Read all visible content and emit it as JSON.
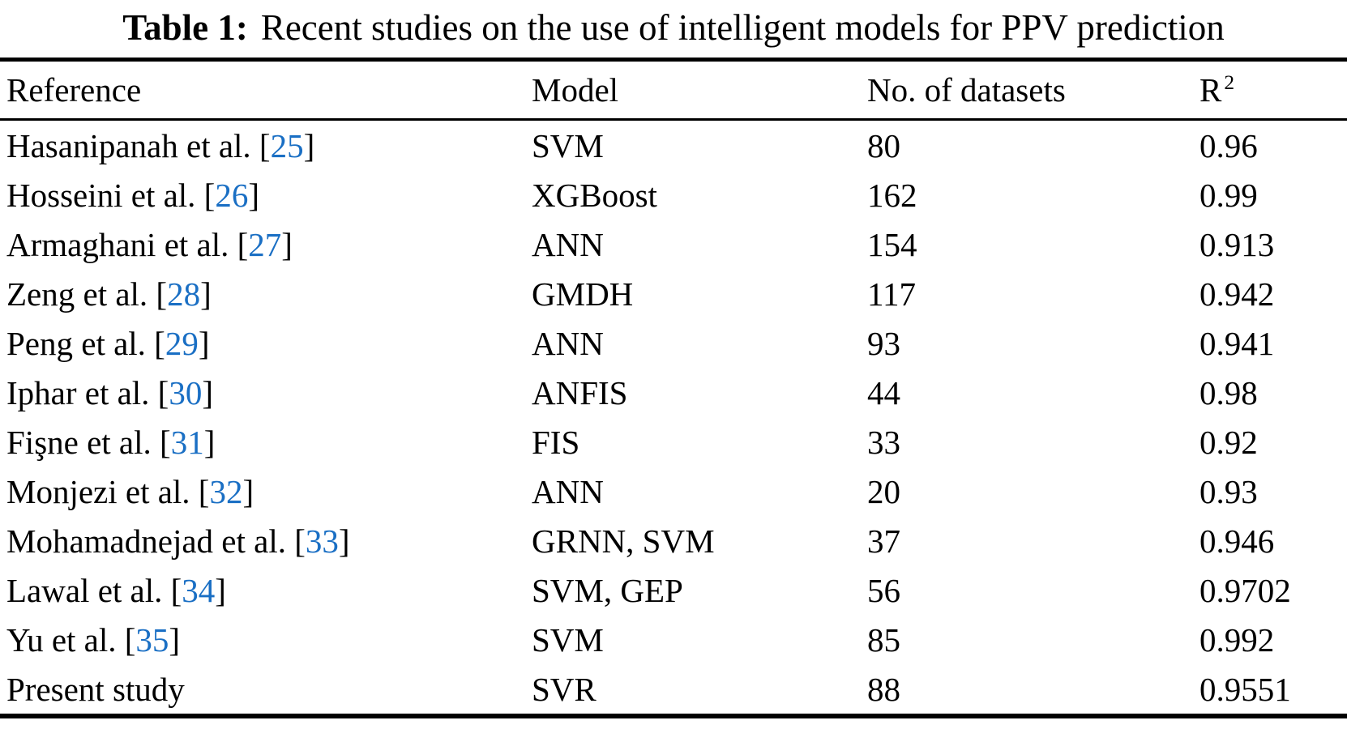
{
  "caption": {
    "label": "Table 1:",
    "text": "Recent studies on the use of intelligent models for PPV prediction"
  },
  "columns": {
    "reference": "Reference",
    "model": "Model",
    "datasets": "No. of datasets",
    "r2_base": "R",
    "r2_sup": "2"
  },
  "colors": {
    "citation_blue": "#1a6fc4",
    "text": "#000000",
    "background": "#ffffff"
  },
  "rows": [
    {
      "reference": "Hasanipanah et al.",
      "citation": "25",
      "model": "SVM",
      "datasets": "80",
      "r2": "0.96"
    },
    {
      "reference": "Hosseini et al.",
      "citation": "26",
      "model": "XGBoost",
      "datasets": "162",
      "r2": "0.99"
    },
    {
      "reference": "Armaghani et al.",
      "citation": "27",
      "model": "ANN",
      "datasets": "154",
      "r2": "0.913"
    },
    {
      "reference": "Zeng et al.",
      "citation": "28",
      "model": "GMDH",
      "datasets": "117",
      "r2": "0.942"
    },
    {
      "reference": "Peng et al.",
      "citation": "29",
      "model": "ANN",
      "datasets": "93",
      "r2": "0.941"
    },
    {
      "reference": "Iphar et al.",
      "citation": "30",
      "model": "ANFIS",
      "datasets": "44",
      "r2": "0.98"
    },
    {
      "reference": "Fişne et al.",
      "citation": "31",
      "model": "FIS",
      "datasets": "33",
      "r2": "0.92"
    },
    {
      "reference": "Monjezi et al.",
      "citation": "32",
      "model": "ANN",
      "datasets": "20",
      "r2": "0.93"
    },
    {
      "reference": "Mohamadnejad et al.",
      "citation": "33",
      "model": "GRNN, SVM",
      "datasets": "37",
      "r2": "0.946"
    },
    {
      "reference": "Lawal et al.",
      "citation": "34",
      "model": "SVM, GEP",
      "datasets": "56",
      "r2": "0.9702"
    },
    {
      "reference": "Yu et al.",
      "citation": "35",
      "model": "SVM",
      "datasets": "85",
      "r2": "0.992"
    },
    {
      "reference": "Present study",
      "citation": null,
      "model": "SVR",
      "datasets": "88",
      "r2": "0.9551"
    }
  ]
}
